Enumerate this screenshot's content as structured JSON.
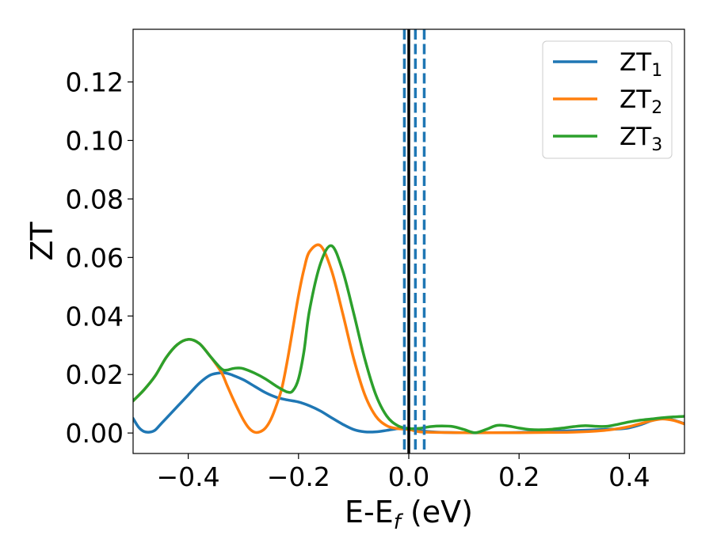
{
  "chart_data": {
    "type": "line",
    "xlabel_main": "E-E",
    "xlabel_sub": "f",
    "xlabel_unit": " (eV)",
    "ylabel": "ZT",
    "xlim": [
      -0.5,
      0.5
    ],
    "ylim": [
      -0.007,
      0.138
    ],
    "x_ticks": [
      -0.4,
      -0.2,
      0.0,
      0.2,
      0.4
    ],
    "x_tick_labels": [
      "−0.4",
      "−0.2",
      "0.0",
      "0.2",
      "0.4"
    ],
    "y_ticks": [
      0.0,
      0.02,
      0.04,
      0.06,
      0.08,
      0.1,
      0.12
    ],
    "y_tick_labels": [
      "0.00",
      "0.02",
      "0.04",
      "0.06",
      "0.08",
      "0.10",
      "0.12"
    ],
    "grid": false,
    "legend_position": "top-right",
    "series": [
      {
        "name": "ZT",
        "sub": "1",
        "color": "#1f77b4",
        "x": [
          -0.5,
          -0.49,
          -0.48,
          -0.47,
          -0.46,
          -0.45,
          -0.44,
          -0.42,
          -0.4,
          -0.38,
          -0.36,
          -0.34,
          -0.33,
          -0.32,
          -0.3,
          -0.28,
          -0.26,
          -0.24,
          -0.22,
          -0.2,
          -0.18,
          -0.16,
          -0.14,
          -0.12,
          -0.1,
          -0.08,
          -0.06,
          -0.04,
          -0.02,
          0.0,
          0.02,
          0.05,
          0.1,
          0.15,
          0.2,
          0.25,
          0.3,
          0.35,
          0.38,
          0.4,
          0.42,
          0.44,
          0.46,
          0.48,
          0.5
        ],
        "y": [
          0.005,
          0.002,
          0.0005,
          0.0003,
          0.001,
          0.003,
          0.005,
          0.009,
          0.013,
          0.017,
          0.0198,
          0.0206,
          0.0204,
          0.0198,
          0.0182,
          0.016,
          0.0138,
          0.0122,
          0.0113,
          0.0106,
          0.0093,
          0.0075,
          0.0052,
          0.003,
          0.0012,
          0.0004,
          0.0004,
          0.0009,
          0.0015,
          0.0016,
          0.0008,
          0.0003,
          0.0001,
          0.0001,
          0.0002,
          0.0005,
          0.0008,
          0.0012,
          0.0014,
          0.0018,
          0.0028,
          0.0042,
          0.0051,
          0.0044,
          0.0032
        ]
      },
      {
        "name": "ZT",
        "sub": "2",
        "color": "#ff7f0e",
        "x": [
          -0.5,
          -0.48,
          -0.46,
          -0.44,
          -0.42,
          -0.4,
          -0.38,
          -0.36,
          -0.34,
          -0.33,
          -0.32,
          -0.31,
          -0.3,
          -0.29,
          -0.28,
          -0.27,
          -0.26,
          -0.25,
          -0.24,
          -0.23,
          -0.22,
          -0.21,
          -0.2,
          -0.19,
          -0.18,
          -0.16,
          -0.14,
          -0.12,
          -0.1,
          -0.08,
          -0.06,
          -0.04,
          -0.02,
          0.0,
          0.02,
          0.05,
          0.1,
          0.15,
          0.2,
          0.25,
          0.3,
          0.35,
          0.38,
          0.4,
          0.42,
          0.44,
          0.46,
          0.48,
          0.5
        ],
        "y": [
          0.011,
          0.0148,
          0.0195,
          0.0258,
          0.0302,
          0.032,
          0.0306,
          0.0262,
          0.0208,
          0.0165,
          0.0122,
          0.0082,
          0.0045,
          0.0017,
          0.0003,
          0.0004,
          0.0017,
          0.0047,
          0.0095,
          0.0155,
          0.025,
          0.036,
          0.047,
          0.056,
          0.062,
          0.064,
          0.0555,
          0.041,
          0.0255,
          0.0132,
          0.0058,
          0.0025,
          0.0015,
          0.0012,
          0.0004,
          0.0002,
          0.0001,
          0.0001,
          0.0001,
          0.0002,
          0.0003,
          0.0008,
          0.0015,
          0.0022,
          0.0032,
          0.0042,
          0.0048,
          0.0043,
          0.0031
        ]
      },
      {
        "name": "ZT",
        "sub": "3",
        "color": "#2ca02c",
        "x": [
          -0.5,
          -0.48,
          -0.46,
          -0.44,
          -0.42,
          -0.4,
          -0.38,
          -0.36,
          -0.34,
          -0.33,
          -0.32,
          -0.31,
          -0.3,
          -0.28,
          -0.26,
          -0.24,
          -0.22,
          -0.21,
          -0.2,
          -0.19,
          -0.18,
          -0.16,
          -0.14,
          -0.12,
          -0.1,
          -0.08,
          -0.06,
          -0.04,
          -0.02,
          0.0,
          0.02,
          0.04,
          0.06,
          0.08,
          0.1,
          0.12,
          0.14,
          0.16,
          0.18,
          0.2,
          0.22,
          0.24,
          0.26,
          0.28,
          0.3,
          0.32,
          0.34,
          0.36,
          0.38,
          0.4,
          0.42,
          0.44,
          0.46,
          0.48,
          0.5
        ],
        "y": [
          0.011,
          0.0148,
          0.0195,
          0.0258,
          0.0302,
          0.032,
          0.0306,
          0.0262,
          0.022,
          0.0215,
          0.022,
          0.0222,
          0.022,
          0.0205,
          0.0185,
          0.016,
          0.014,
          0.0145,
          0.0185,
          0.028,
          0.042,
          0.058,
          0.064,
          0.0555,
          0.041,
          0.0255,
          0.0132,
          0.0058,
          0.0025,
          0.0015,
          0.0016,
          0.0022,
          0.0024,
          0.0022,
          0.0012,
          0.0001,
          0.0012,
          0.0026,
          0.0024,
          0.0017,
          0.0012,
          0.0011,
          0.0013,
          0.0017,
          0.0022,
          0.0025,
          0.0023,
          0.0023,
          0.003,
          0.0038,
          0.0044,
          0.0048,
          0.0052,
          0.0055,
          0.0057
        ]
      }
    ],
    "vertical_lines": [
      {
        "x": -0.008,
        "style": "dashed",
        "color": "#1f77b4"
      },
      {
        "x": 0.012,
        "style": "dashed",
        "color": "#1f77b4"
      },
      {
        "x": 0.028,
        "style": "dashed",
        "color": "#1f77b4"
      },
      {
        "x": 0.0,
        "style": "solid",
        "color": "#000000"
      }
    ]
  }
}
